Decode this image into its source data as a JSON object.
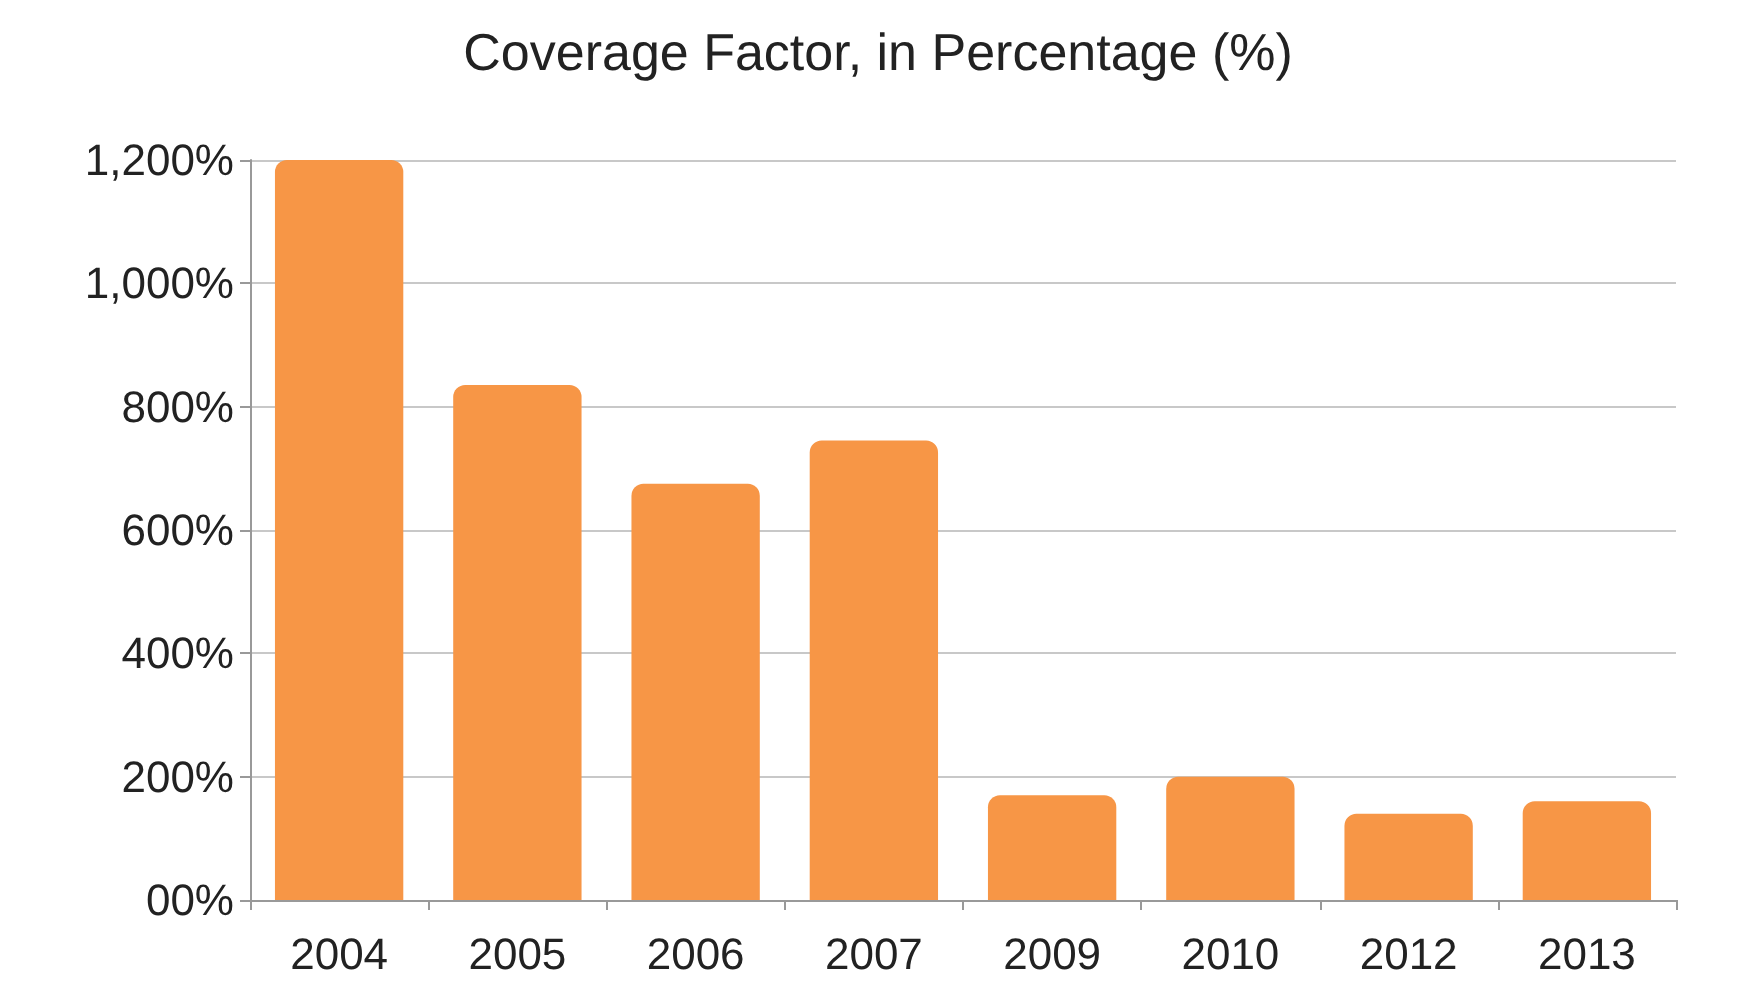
{
  "chart_data": {
    "type": "bar",
    "title": "Coverage Factor, in Percentage (%)",
    "categories": [
      "2004",
      "2005",
      "2006",
      "2007",
      "2009",
      "2010",
      "2012",
      "2013"
    ],
    "values": [
      1200,
      835,
      675,
      745,
      170,
      200,
      140,
      160
    ],
    "color": "#f79646",
    "ylim": [
      0,
      1200
    ],
    "yticks": [
      {
        "value": 0,
        "label": "00%"
      },
      {
        "value": 200,
        "label": "200%"
      },
      {
        "value": 400,
        "label": "400%"
      },
      {
        "value": 600,
        "label": "600%"
      },
      {
        "value": 800,
        "label": "800%"
      },
      {
        "value": 1000,
        "label": "1,000%"
      },
      {
        "value": 1200,
        "label": "1,200%"
      }
    ],
    "grid": "y"
  }
}
